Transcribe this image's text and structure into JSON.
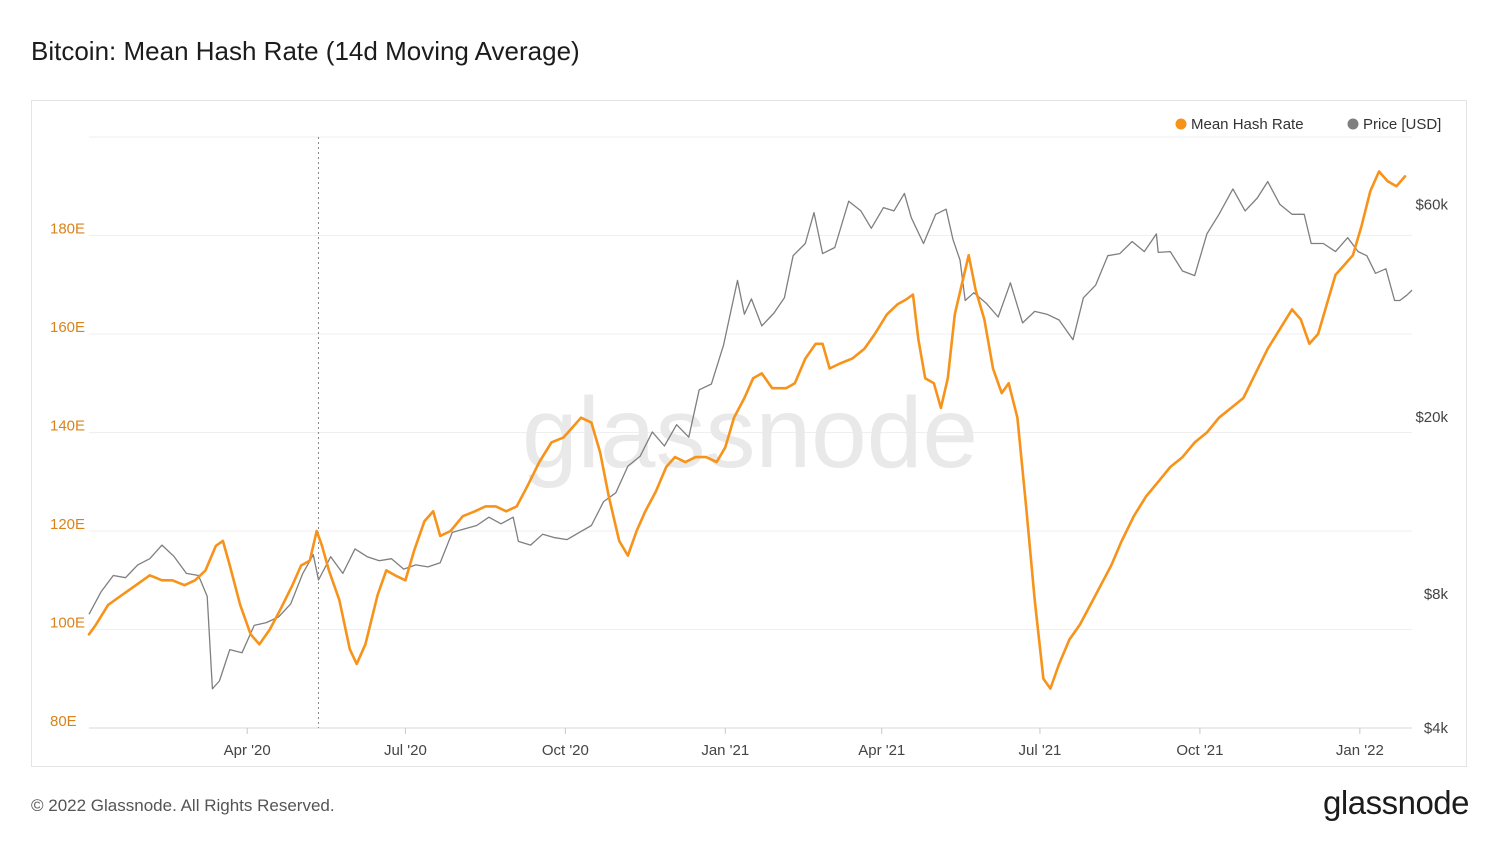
{
  "title": "Bitcoin: Mean Hash Rate (14d Moving Average)",
  "footer": "© 2022 Glassnode. All Rights Reserved.",
  "brand": "glassnode",
  "watermark": "glassnode",
  "colors": {
    "hash": "#f7931a",
    "price": "#7f7f7f",
    "grid": "#efefef",
    "axis_hash": "#d9831a",
    "axis_price": "#444444"
  },
  "chart_data": {
    "type": "line",
    "title": "Bitcoin: Mean Hash Rate (14d Moving Average)",
    "x_range": [
      "2020-01-01",
      "2022-01-31"
    ],
    "x_ticks": [
      {
        "label": "Apr '20",
        "date": "2020-04-01"
      },
      {
        "label": "Jul '20",
        "date": "2020-07-01"
      },
      {
        "label": "Oct '20",
        "date": "2020-10-01"
      },
      {
        "label": "Jan '21",
        "date": "2021-01-01"
      },
      {
        "label": "Apr '21",
        "date": "2021-04-01"
      },
      {
        "label": "Jul '21",
        "date": "2021-07-01"
      },
      {
        "label": "Oct '21",
        "date": "2021-10-01"
      },
      {
        "label": "Jan '22",
        "date": "2022-01-01"
      }
    ],
    "y_left": {
      "label": "Mean Hash Rate",
      "range": [
        80,
        200
      ],
      "ticks": [
        80,
        100,
        120,
        140,
        160,
        180
      ],
      "tick_labels": [
        "80E",
        "100E",
        "120E",
        "140E",
        "160E",
        "180E"
      ]
    },
    "y_right": {
      "label": "Price [USD]",
      "scale": "log",
      "range": [
        4000,
        85000
      ],
      "ticks": [
        4000,
        8000,
        20000,
        60000
      ],
      "tick_labels": [
        "$4k",
        "$8k",
        "$20k",
        "$60k"
      ]
    },
    "legend": {
      "position": "top-right",
      "items": [
        "Mean Hash Rate",
        "Price [USD]"
      ]
    },
    "crosshair_date": "2020-05-12",
    "series": [
      {
        "name": "Mean Hash Rate",
        "axis": "left",
        "points": [
          [
            "2020-01-01",
            99
          ],
          [
            "2020-01-05",
            101
          ],
          [
            "2020-01-12",
            105
          ],
          [
            "2020-01-20",
            107
          ],
          [
            "2020-01-28",
            109
          ],
          [
            "2020-02-05",
            111
          ],
          [
            "2020-02-12",
            110
          ],
          [
            "2020-02-18",
            110
          ],
          [
            "2020-02-25",
            109
          ],
          [
            "2020-03-02",
            110
          ],
          [
            "2020-03-08",
            112
          ],
          [
            "2020-03-14",
            117
          ],
          [
            "2020-03-18",
            118
          ],
          [
            "2020-03-22",
            113
          ],
          [
            "2020-03-28",
            105
          ],
          [
            "2020-04-03",
            99
          ],
          [
            "2020-04-08",
            97
          ],
          [
            "2020-04-14",
            100
          ],
          [
            "2020-04-20",
            104
          ],
          [
            "2020-04-27",
            109
          ],
          [
            "2020-05-02",
            113
          ],
          [
            "2020-05-07",
            114
          ],
          [
            "2020-05-11",
            120
          ],
          [
            "2020-05-14",
            117
          ],
          [
            "2020-05-18",
            112
          ],
          [
            "2020-05-24",
            106
          ],
          [
            "2020-05-30",
            96
          ],
          [
            "2020-06-03",
            93
          ],
          [
            "2020-06-08",
            97
          ],
          [
            "2020-06-15",
            107
          ],
          [
            "2020-06-20",
            112
          ],
          [
            "2020-06-25",
            111
          ],
          [
            "2020-07-01",
            110
          ],
          [
            "2020-07-06",
            116
          ],
          [
            "2020-07-12",
            122
          ],
          [
            "2020-07-17",
            124
          ],
          [
            "2020-07-21",
            119
          ],
          [
            "2020-07-27",
            120
          ],
          [
            "2020-08-03",
            123
          ],
          [
            "2020-08-10",
            124
          ],
          [
            "2020-08-16",
            125
          ],
          [
            "2020-08-22",
            125
          ],
          [
            "2020-08-28",
            124
          ],
          [
            "2020-09-03",
            125
          ],
          [
            "2020-09-09",
            129
          ],
          [
            "2020-09-16",
            134
          ],
          [
            "2020-09-23",
            138
          ],
          [
            "2020-09-30",
            139
          ],
          [
            "2020-10-05",
            141
          ],
          [
            "2020-10-10",
            143
          ],
          [
            "2020-10-16",
            142
          ],
          [
            "2020-10-21",
            136
          ],
          [
            "2020-10-26",
            127
          ],
          [
            "2020-11-01",
            118
          ],
          [
            "2020-11-06",
            115
          ],
          [
            "2020-11-11",
            120
          ],
          [
            "2020-11-16",
            124
          ],
          [
            "2020-11-22",
            128
          ],
          [
            "2020-11-28",
            133
          ],
          [
            "2020-12-03",
            135
          ],
          [
            "2020-12-09",
            134
          ],
          [
            "2020-12-15",
            135
          ],
          [
            "2020-12-21",
            135
          ],
          [
            "2020-12-27",
            134
          ],
          [
            "2021-01-01",
            137
          ],
          [
            "2021-01-06",
            143
          ],
          [
            "2021-01-12",
            147
          ],
          [
            "2021-01-17",
            151
          ],
          [
            "2021-01-22",
            152
          ],
          [
            "2021-01-28",
            149
          ],
          [
            "2021-02-05",
            149
          ],
          [
            "2021-02-10",
            150
          ],
          [
            "2021-02-16",
            155
          ],
          [
            "2021-02-22",
            158
          ],
          [
            "2021-02-26",
            158
          ],
          [
            "2021-03-02",
            153
          ],
          [
            "2021-03-08",
            154
          ],
          [
            "2021-03-15",
            155
          ],
          [
            "2021-03-22",
            157
          ],
          [
            "2021-03-28",
            160
          ],
          [
            "2021-04-04",
            164
          ],
          [
            "2021-04-10",
            166
          ],
          [
            "2021-04-15",
            167
          ],
          [
            "2021-04-19",
            168
          ],
          [
            "2021-04-22",
            159
          ],
          [
            "2021-04-26",
            151
          ],
          [
            "2021-05-01",
            150
          ],
          [
            "2021-05-05",
            145
          ],
          [
            "2021-05-09",
            151
          ],
          [
            "2021-05-13",
            164
          ],
          [
            "2021-05-17",
            170
          ],
          [
            "2021-05-21",
            176
          ],
          [
            "2021-05-25",
            169
          ],
          [
            "2021-05-30",
            163
          ],
          [
            "2021-06-04",
            153
          ],
          [
            "2021-06-09",
            148
          ],
          [
            "2021-06-13",
            150
          ],
          [
            "2021-06-18",
            143
          ],
          [
            "2021-06-23",
            125
          ],
          [
            "2021-06-28",
            106
          ],
          [
            "2021-07-03",
            90
          ],
          [
            "2021-07-07",
            88
          ],
          [
            "2021-07-12",
            93
          ],
          [
            "2021-07-18",
            98
          ],
          [
            "2021-07-24",
            101
          ],
          [
            "2021-07-30",
            105
          ],
          [
            "2021-08-05",
            109
          ],
          [
            "2021-08-11",
            113
          ],
          [
            "2021-08-17",
            118
          ],
          [
            "2021-08-24",
            123
          ],
          [
            "2021-08-31",
            127
          ],
          [
            "2021-09-07",
            130
          ],
          [
            "2021-09-14",
            133
          ],
          [
            "2021-09-21",
            135
          ],
          [
            "2021-09-28",
            138
          ],
          [
            "2021-10-05",
            140
          ],
          [
            "2021-10-12",
            143
          ],
          [
            "2021-10-19",
            145
          ],
          [
            "2021-10-26",
            147
          ],
          [
            "2021-11-02",
            152
          ],
          [
            "2021-11-09",
            157
          ],
          [
            "2021-11-16",
            161
          ],
          [
            "2021-11-23",
            165
          ],
          [
            "2021-11-28",
            163
          ],
          [
            "2021-12-03",
            158
          ],
          [
            "2021-12-08",
            160
          ],
          [
            "2021-12-13",
            166
          ],
          [
            "2021-12-18",
            172
          ],
          [
            "2021-12-23",
            174
          ],
          [
            "2021-12-28",
            176
          ],
          [
            "2022-01-02",
            182
          ],
          [
            "2022-01-07",
            189
          ],
          [
            "2022-01-12",
            193
          ],
          [
            "2022-01-17",
            191
          ],
          [
            "2022-01-22",
            190
          ],
          [
            "2022-01-27",
            192
          ]
        ]
      },
      {
        "name": "Price [USD]",
        "axis": "right",
        "points": [
          [
            "2020-01-01",
            7200
          ],
          [
            "2020-01-08",
            8100
          ],
          [
            "2020-01-15",
            8800
          ],
          [
            "2020-01-22",
            8700
          ],
          [
            "2020-01-29",
            9300
          ],
          [
            "2020-02-05",
            9600
          ],
          [
            "2020-02-12",
            10300
          ],
          [
            "2020-02-19",
            9700
          ],
          [
            "2020-02-26",
            8900
          ],
          [
            "2020-03-04",
            8800
          ],
          [
            "2020-03-09",
            7900
          ],
          [
            "2020-03-12",
            4900
          ],
          [
            "2020-03-16",
            5100
          ],
          [
            "2020-03-22",
            6000
          ],
          [
            "2020-03-29",
            5900
          ],
          [
            "2020-04-05",
            6800
          ],
          [
            "2020-04-12",
            6900
          ],
          [
            "2020-04-19",
            7100
          ],
          [
            "2020-04-26",
            7600
          ],
          [
            "2020-05-03",
            8900
          ],
          [
            "2020-05-09",
            9800
          ],
          [
            "2020-05-12",
            8600
          ],
          [
            "2020-05-19",
            9700
          ],
          [
            "2020-05-26",
            8900
          ],
          [
            "2020-06-02",
            10100
          ],
          [
            "2020-06-09",
            9700
          ],
          [
            "2020-06-16",
            9500
          ],
          [
            "2020-06-23",
            9600
          ],
          [
            "2020-06-30",
            9100
          ],
          [
            "2020-07-07",
            9300
          ],
          [
            "2020-07-14",
            9200
          ],
          [
            "2020-07-21",
            9400
          ],
          [
            "2020-07-28",
            11000
          ],
          [
            "2020-08-04",
            11200
          ],
          [
            "2020-08-11",
            11400
          ],
          [
            "2020-08-18",
            11900
          ],
          [
            "2020-08-25",
            11500
          ],
          [
            "2020-09-01",
            11900
          ],
          [
            "2020-09-04",
            10500
          ],
          [
            "2020-09-11",
            10300
          ],
          [
            "2020-09-18",
            10900
          ],
          [
            "2020-09-25",
            10700
          ],
          [
            "2020-10-02",
            10600
          ],
          [
            "2020-10-09",
            11000
          ],
          [
            "2020-10-16",
            11400
          ],
          [
            "2020-10-23",
            12900
          ],
          [
            "2020-10-30",
            13500
          ],
          [
            "2020-11-06",
            15500
          ],
          [
            "2020-11-13",
            16300
          ],
          [
            "2020-11-20",
            18500
          ],
          [
            "2020-11-27",
            17200
          ],
          [
            "2020-12-04",
            19200
          ],
          [
            "2020-12-11",
            18000
          ],
          [
            "2020-12-17",
            23000
          ],
          [
            "2020-12-24",
            23700
          ],
          [
            "2020-12-31",
            29000
          ],
          [
            "2021-01-08",
            40500
          ],
          [
            "2021-01-12",
            34000
          ],
          [
            "2021-01-16",
            36800
          ],
          [
            "2021-01-22",
            32000
          ],
          [
            "2021-01-29",
            34200
          ],
          [
            "2021-02-04",
            37000
          ],
          [
            "2021-02-09",
            46000
          ],
          [
            "2021-02-16",
            49000
          ],
          [
            "2021-02-21",
            57500
          ],
          [
            "2021-02-26",
            46500
          ],
          [
            "2021-03-05",
            48000
          ],
          [
            "2021-03-13",
            61000
          ],
          [
            "2021-03-20",
            58000
          ],
          [
            "2021-03-26",
            53000
          ],
          [
            "2021-04-02",
            59000
          ],
          [
            "2021-04-08",
            58000
          ],
          [
            "2021-04-14",
            63500
          ],
          [
            "2021-04-18",
            56000
          ],
          [
            "2021-04-25",
            49000
          ],
          [
            "2021-05-02",
            57000
          ],
          [
            "2021-05-08",
            58500
          ],
          [
            "2021-05-12",
            50000
          ],
          [
            "2021-05-16",
            45000
          ],
          [
            "2021-05-19",
            36500
          ],
          [
            "2021-05-24",
            38000
          ],
          [
            "2021-05-31",
            36000
          ],
          [
            "2021-06-07",
            33500
          ],
          [
            "2021-06-14",
            40000
          ],
          [
            "2021-06-21",
            32500
          ],
          [
            "2021-06-28",
            34500
          ],
          [
            "2021-07-05",
            34000
          ],
          [
            "2021-07-12",
            33000
          ],
          [
            "2021-07-20",
            29800
          ],
          [
            "2021-07-26",
            37000
          ],
          [
            "2021-08-02",
            39500
          ],
          [
            "2021-08-09",
            46000
          ],
          [
            "2021-08-16",
            46500
          ],
          [
            "2021-08-23",
            49500
          ],
          [
            "2021-08-30",
            47000
          ],
          [
            "2021-09-06",
            51500
          ],
          [
            "2021-09-07",
            46800
          ],
          [
            "2021-09-14",
            47000
          ],
          [
            "2021-09-21",
            42500
          ],
          [
            "2021-09-28",
            41500
          ],
          [
            "2021-10-05",
            51500
          ],
          [
            "2021-10-12",
            57000
          ],
          [
            "2021-10-20",
            65000
          ],
          [
            "2021-10-27",
            58000
          ],
          [
            "2021-11-03",
            62000
          ],
          [
            "2021-11-09",
            67500
          ],
          [
            "2021-11-16",
            60000
          ],
          [
            "2021-11-23",
            57000
          ],
          [
            "2021-11-30",
            57000
          ],
          [
            "2021-12-04",
            49000
          ],
          [
            "2021-12-11",
            49000
          ],
          [
            "2021-12-18",
            47000
          ],
          [
            "2021-12-25",
            50500
          ],
          [
            "2021-12-31",
            47000
          ],
          [
            "2022-01-05",
            46000
          ],
          [
            "2022-01-10",
            42000
          ],
          [
            "2022-01-16",
            43000
          ],
          [
            "2022-01-21",
            36500
          ],
          [
            "2022-01-24",
            36500
          ],
          [
            "2022-01-28",
            37500
          ],
          [
            "2022-01-31",
            38500
          ]
        ]
      }
    ]
  }
}
